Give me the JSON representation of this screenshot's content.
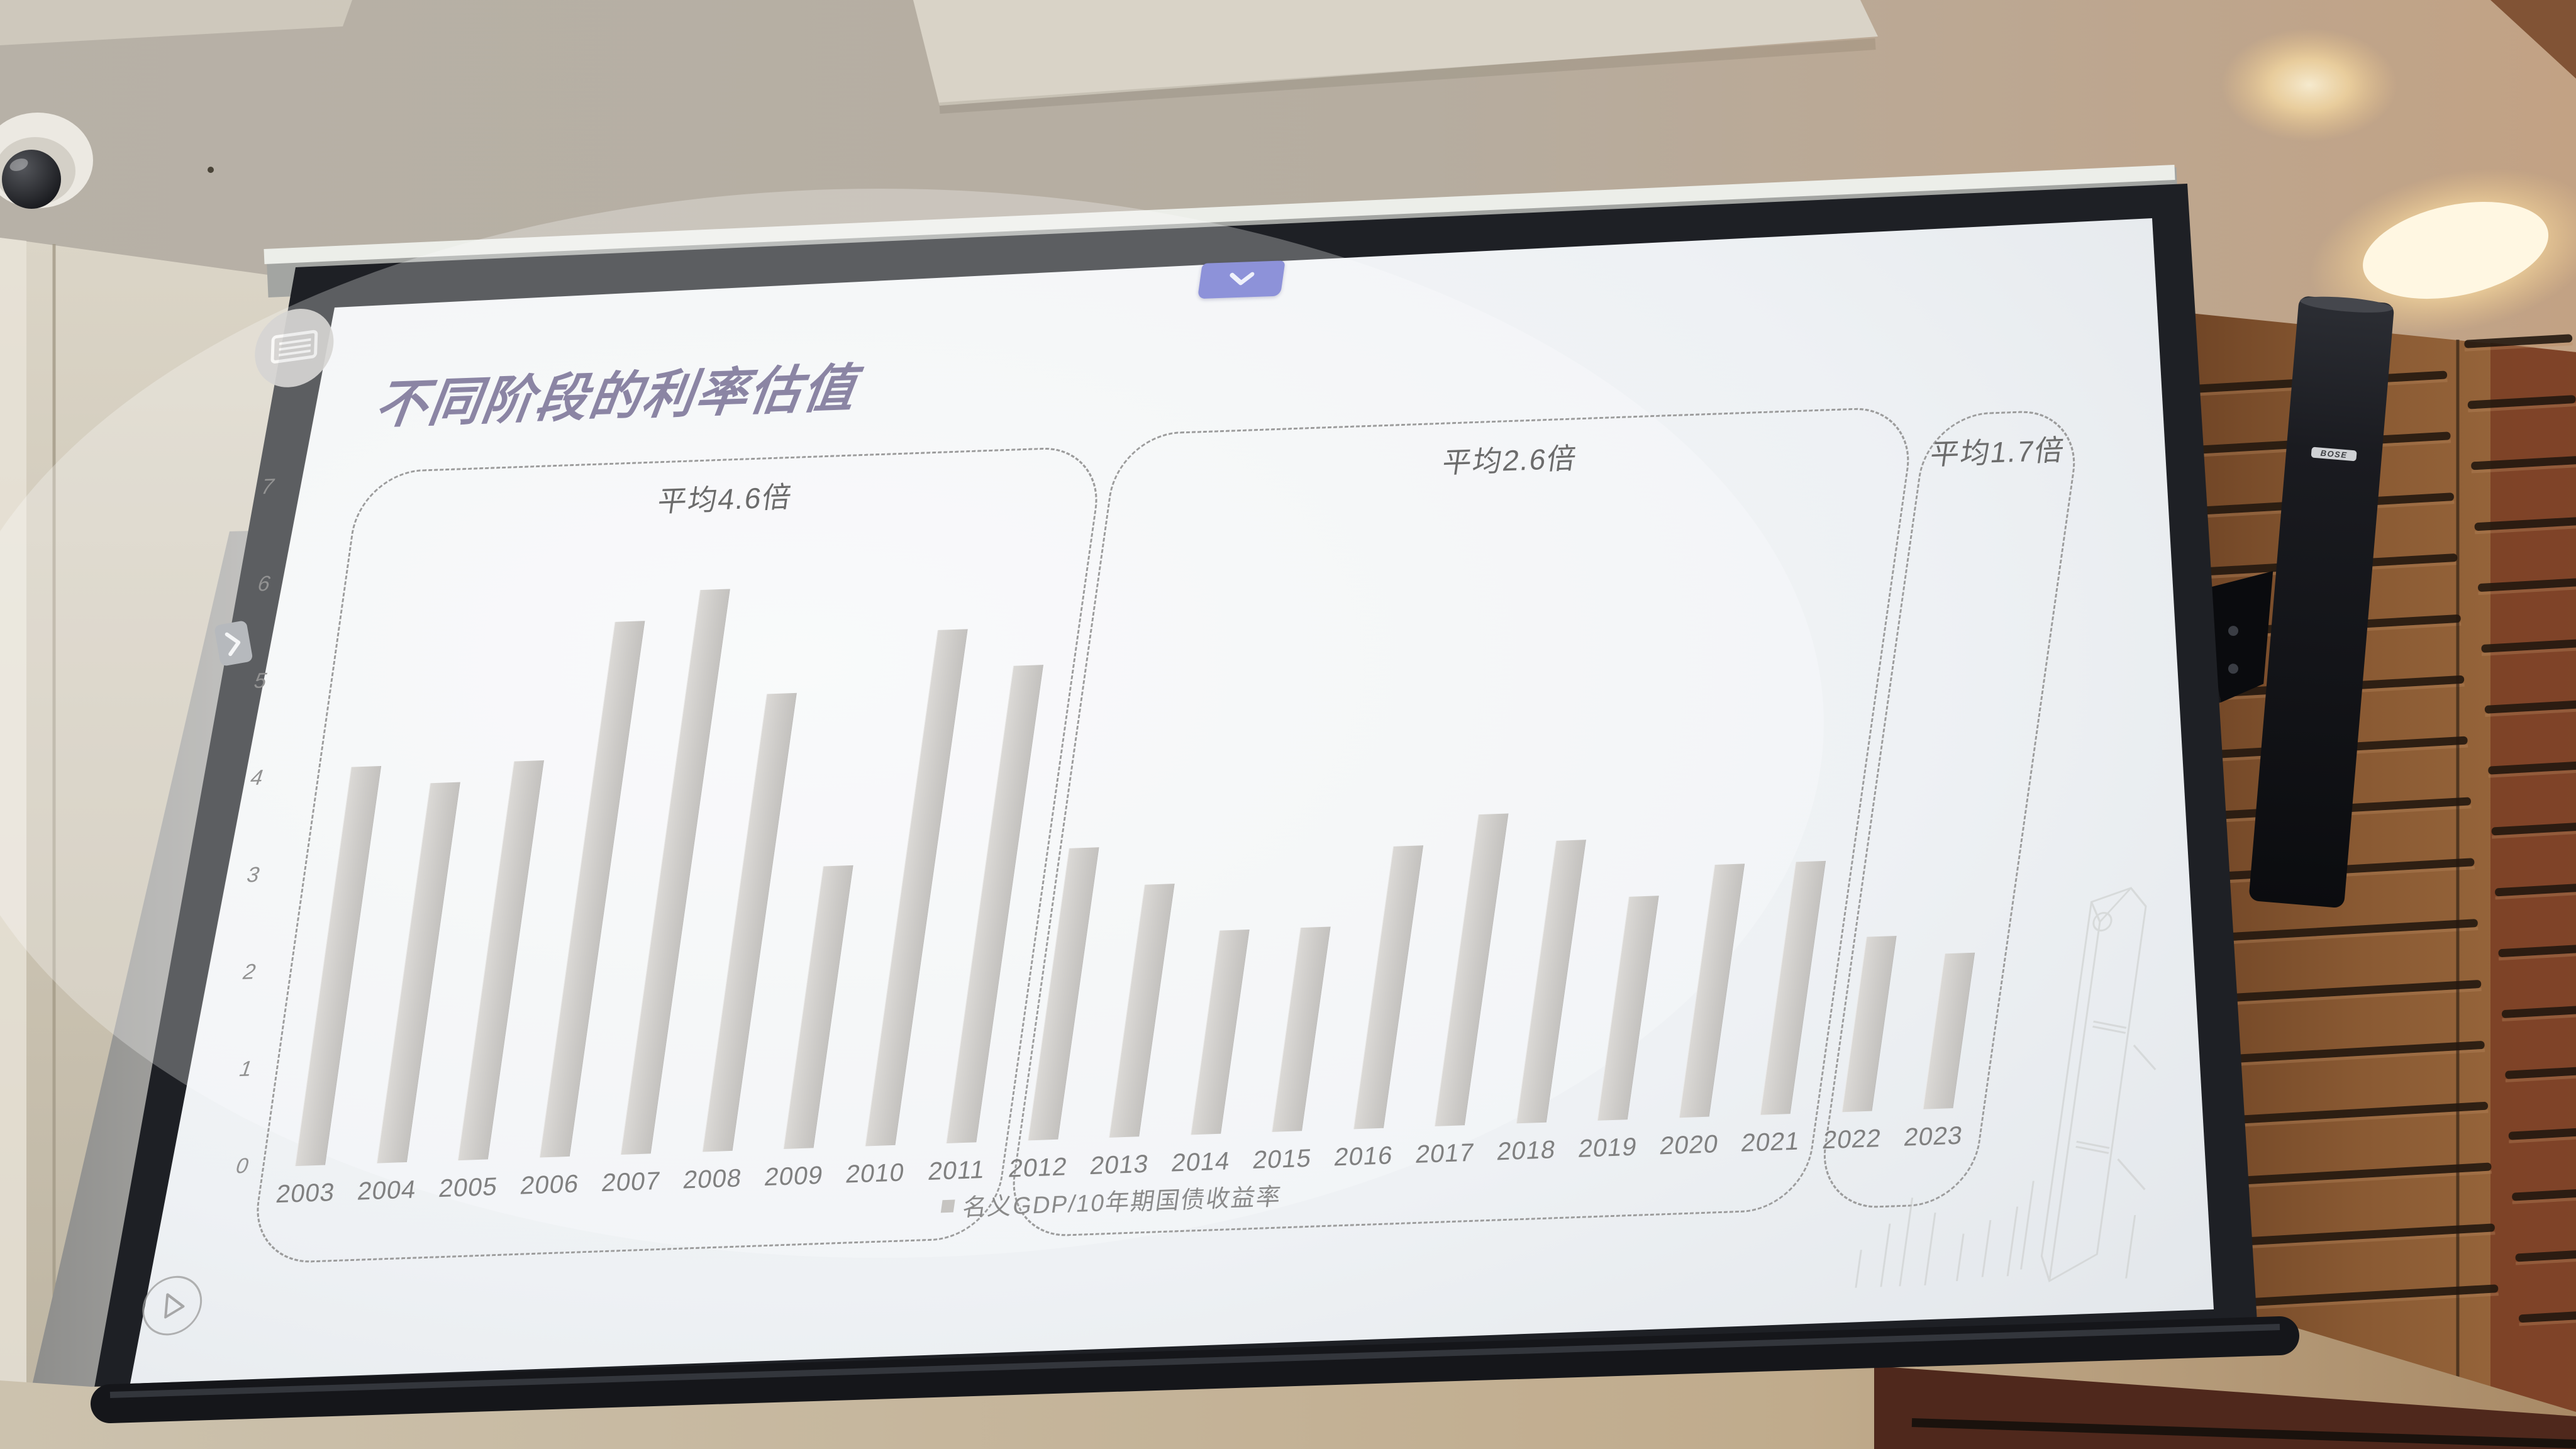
{
  "scene": {
    "speaker_brand": "BOSE",
    "colors": {
      "slide_title": "#8b85a4",
      "chevron_button": "#8d92d9",
      "bar": "#cfcdca",
      "screen_frame": "#1c1e22",
      "wood_wall": "#8a5a33"
    }
  },
  "slide": {
    "title": "不同阶段的利率估值"
  },
  "chart_data": {
    "type": "bar",
    "title": "不同阶段的利率估值",
    "categories": [
      "2003",
      "2004",
      "2005",
      "2006",
      "2007",
      "2008",
      "2009",
      "2010",
      "2011",
      "2012",
      "2013",
      "2014",
      "2015",
      "2016",
      "2017",
      "2018",
      "2019",
      "2020",
      "2021",
      "2022",
      "2023"
    ],
    "values": [
      4.1,
      3.9,
      4.1,
      5.5,
      5.8,
      4.7,
      2.9,
      5.3,
      4.9,
      3.0,
      2.6,
      2.1,
      2.1,
      2.9,
      3.2,
      2.9,
      2.3,
      2.6,
      2.6,
      1.8,
      1.6
    ],
    "ylim": [
      0,
      7
    ],
    "yticks": [
      0,
      1,
      2,
      3,
      4,
      5,
      6,
      7
    ],
    "grid": false,
    "legend": [
      "名义GDP/10年期国债收益率"
    ],
    "legend_position": "bottom",
    "groups": [
      {
        "label": "平均4.6倍",
        "from": "2003",
        "to": "2011",
        "average_multiple": 4.6
      },
      {
        "label": "平均2.6倍",
        "from": "2012",
        "to": "2021",
        "average_multiple": 2.6
      },
      {
        "label": "平均1.7倍",
        "from": "2022",
        "to": "2023",
        "average_multiple": 1.7
      }
    ]
  }
}
